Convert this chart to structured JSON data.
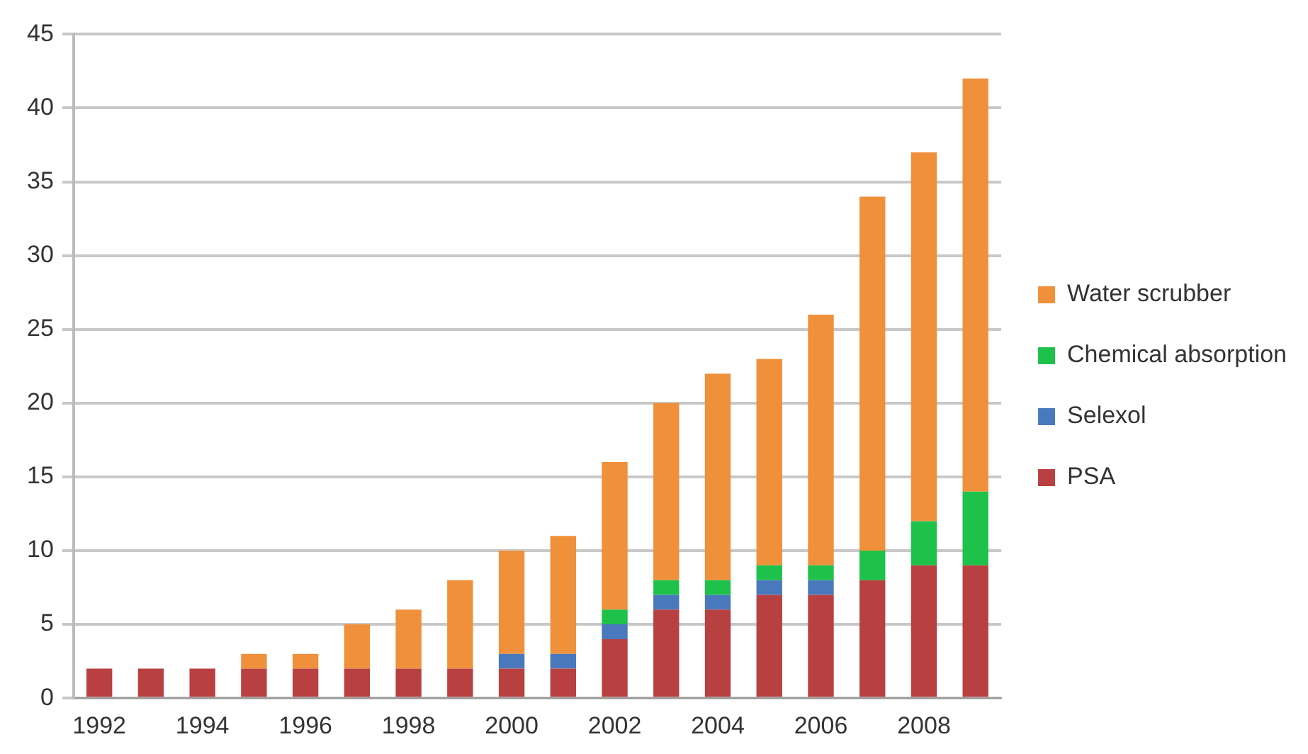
{
  "chart_data": {
    "type": "bar",
    "stacked": true,
    "categories": [
      "1992",
      null,
      "1994",
      null,
      "1996",
      null,
      "1998",
      null,
      "2000",
      null,
      "2002",
      null,
      "2004",
      null,
      "2006",
      null,
      "2008",
      null
    ],
    "series": [
      {
        "name": "PSA",
        "color": "#b94040",
        "values": [
          2,
          2,
          2,
          2,
          2,
          2,
          2,
          2,
          2,
          2,
          4,
          6,
          6,
          7,
          7,
          8,
          9,
          9
        ]
      },
      {
        "name": "Selexol",
        "color": "#4a78bd",
        "values": [
          0,
          0,
          0,
          0,
          0,
          0,
          0,
          0,
          1,
          1,
          1,
          1,
          1,
          1,
          1,
          0,
          0,
          0
        ]
      },
      {
        "name": "Chemical absorption",
        "color": "#1ec24a",
        "values": [
          0,
          0,
          0,
          0,
          0,
          0,
          0,
          0,
          0,
          0,
          1,
          1,
          1,
          1,
          1,
          2,
          3,
          5
        ]
      },
      {
        "name": "Water scrubber",
        "color": "#f0903a",
        "values": [
          0,
          0,
          0,
          1,
          1,
          3,
          4,
          6,
          7,
          8,
          10,
          12,
          14,
          14,
          17,
          24,
          25,
          28
        ]
      }
    ],
    "ylim": [
      0,
      45
    ],
    "yticks": [
      0,
      5,
      10,
      15,
      20,
      25,
      30,
      35,
      40,
      45
    ],
    "grid": "y",
    "legend": "right"
  }
}
